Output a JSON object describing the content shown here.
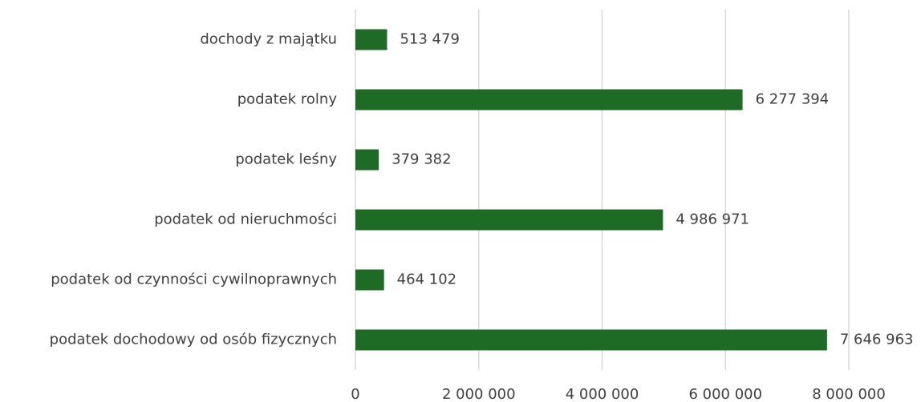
{
  "chart_data": {
    "type": "bar",
    "orientation": "horizontal",
    "categories": [
      "dochody z majątku",
      "podatek rolny",
      "podatek leśny",
      "podatek od nieruchmości",
      "podatek od czynności cywilnoprawnych",
      "podatek dochodowy od osób fizycznych"
    ],
    "values": [
      513479,
      6277394,
      379382,
      4986971,
      464102,
      7646963
    ],
    "value_labels": [
      "513 479",
      "6 277 394",
      "379 382",
      "4 986 971",
      "464 102",
      "7 646 963"
    ],
    "color": "#1e6b25",
    "xlim": [
      0,
      8000000
    ],
    "xticks": [
      0,
      {
        "value": 2000000,
        "label": "2 000 000"
      },
      {
        "value": 4000000,
        "label": "4 000 000"
      },
      {
        "value": 6000000,
        "label": "6 000 000"
      },
      {
        "value": 8000000,
        "label": "8 000 000"
      }
    ],
    "grid": true
  }
}
